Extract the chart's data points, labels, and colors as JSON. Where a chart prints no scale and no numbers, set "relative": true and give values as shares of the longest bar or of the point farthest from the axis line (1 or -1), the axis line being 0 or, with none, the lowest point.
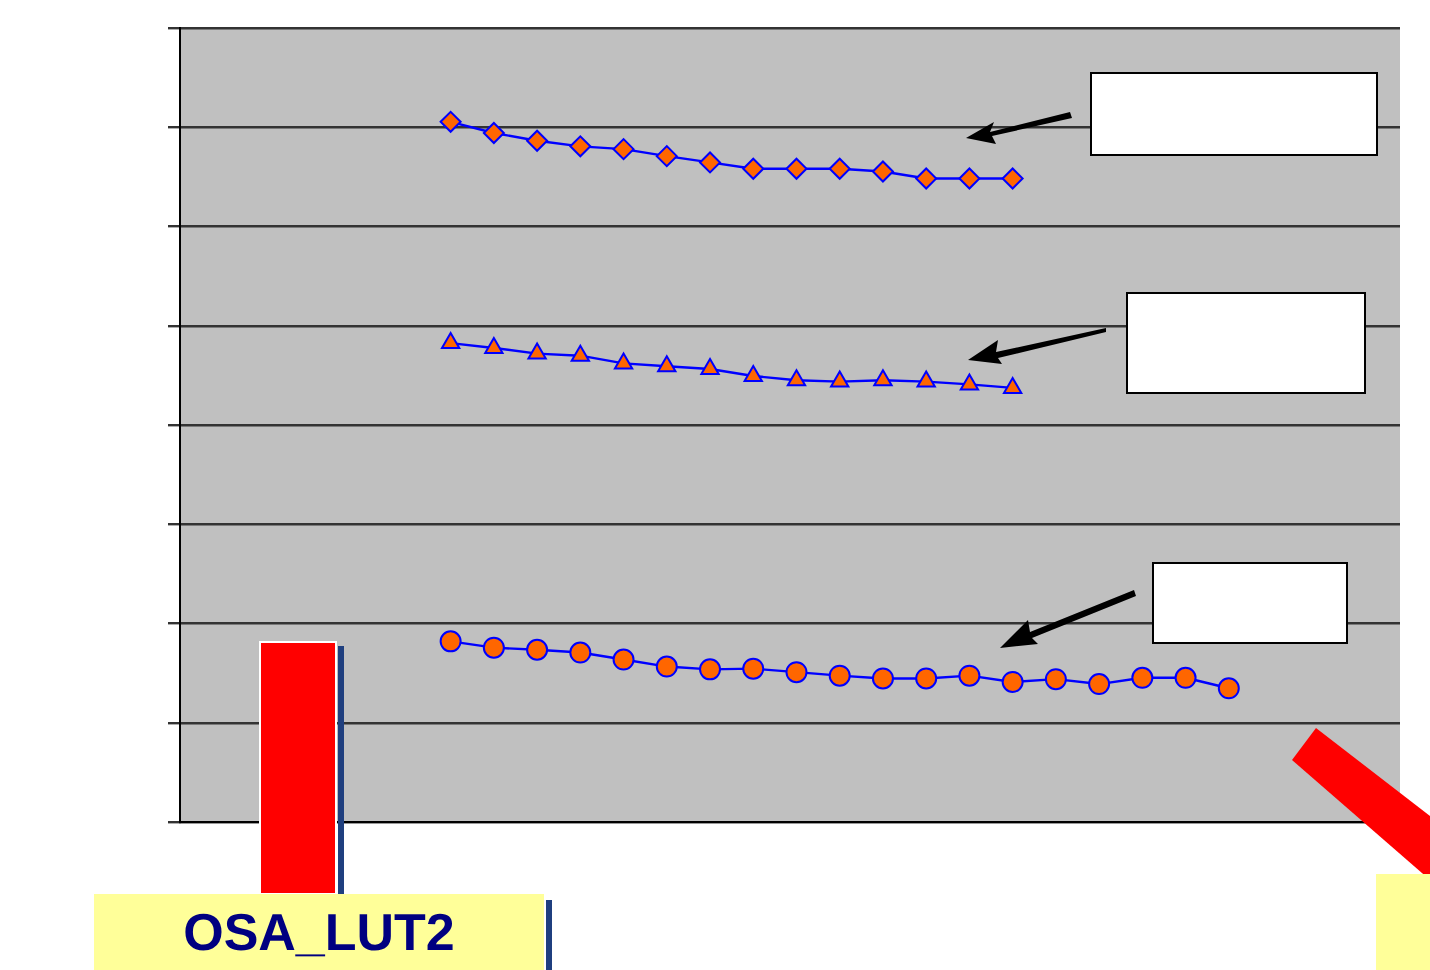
{
  "chart_data": {
    "type": "line",
    "relative": true,
    "grid": "y",
    "legend": false,
    "line_style": "solid",
    "categories": [
      null,
      null,
      null,
      null,
      null,
      null,
      null,
      null,
      null,
      null,
      null,
      null,
      null,
      null,
      null,
      null,
      null,
      null,
      null
    ],
    "series": [
      {
        "color": "#0000ff",
        "marker": "diamond",
        "values": [
          1.0,
          0.984,
          0.973,
          0.965,
          0.961,
          0.951,
          0.942,
          0.933,
          0.933,
          0.933,
          0.929,
          0.919,
          0.919,
          0.919,
          null,
          null,
          null,
          null,
          null
        ]
      },
      {
        "color": "#0000ff",
        "marker": "triangle",
        "values": [
          0.684,
          0.677,
          0.669,
          0.666,
          0.655,
          0.651,
          0.647,
          0.637,
          0.631,
          0.629,
          0.631,
          0.629,
          0.625,
          0.62,
          null,
          null,
          null,
          null,
          null
        ]
      },
      {
        "color": "#0000ff",
        "marker": "circle",
        "values": [
          0.258,
          0.249,
          0.246,
          0.242,
          0.232,
          0.222,
          0.218,
          0.219,
          0.214,
          0.209,
          0.205,
          0.205,
          0.209,
          0.2,
          0.204,
          0.197,
          0.206,
          0.206,
          0.191
        ]
      }
    ],
    "annotations": [
      "OSA_LUT2"
    ]
  }
}
